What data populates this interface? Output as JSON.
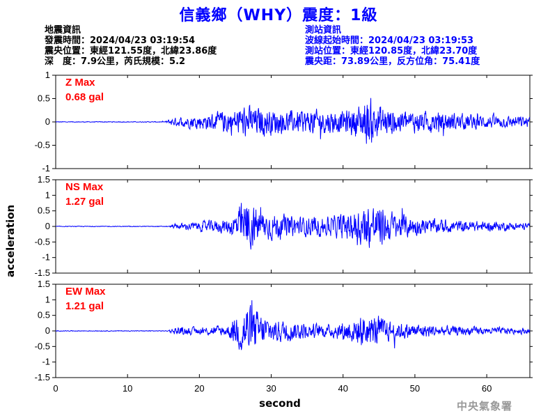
{
  "title": "信義鄉（WHY）震度：1級",
  "quake_info": {
    "header": "地震資訊",
    "time": "發震時間：2024/04/23 03:19:54",
    "location": "震央位置：東經121.55度，北緯23.86度",
    "depth_mag": "深　度：7.9公里，芮氏規模：5.2"
  },
  "station_info": {
    "header": "測站資訊",
    "wave_start": "波線起始時間：2024/04/23 03:19:53",
    "location": "測站位置：東經120.85度，北緯23.70度",
    "distance": "震央距：73.89公里，反方位角：75.41度"
  },
  "watermark": "中央氣象署",
  "colors": {
    "title": "#0000ff",
    "trace": "#0000ff",
    "max_label": "#ff0000",
    "station_text": "#0000ff"
  },
  "chart_data": [
    {
      "type": "line",
      "component": "Z",
      "max_label": "Z Max",
      "max_value": "0.68 gal",
      "ylim": [
        -1,
        1
      ],
      "yticks": [
        -1,
        -0.5,
        0,
        0.5,
        1
      ],
      "xlim": [
        0,
        66
      ],
      "envelope": {
        "x": [
          0,
          15.2,
          16,
          18,
          20,
          22,
          24,
          26,
          27,
          28,
          30,
          33,
          36,
          40,
          42,
          43.5,
          44.5,
          46,
          50,
          55,
          60,
          66
        ],
        "amp": [
          0.01,
          0.01,
          0.1,
          0.15,
          0.2,
          0.25,
          0.35,
          0.4,
          0.45,
          0.4,
          0.35,
          0.3,
          0.35,
          0.3,
          0.45,
          0.68,
          0.55,
          0.4,
          0.3,
          0.25,
          0.18,
          0.15
        ]
      }
    },
    {
      "type": "line",
      "component": "NS",
      "max_label": "NS Max",
      "max_value": "1.27 gal",
      "ylim": [
        -1.5,
        1.5
      ],
      "yticks": [
        -1.5,
        -1,
        -0.5,
        0,
        0.5,
        1,
        1.5
      ],
      "xlim": [
        0,
        66
      ],
      "envelope": {
        "x": [
          0,
          15.8,
          16.5,
          20,
          24,
          25.5,
          26.5,
          27.5,
          29,
          31,
          34,
          38,
          41,
          43,
          44.5,
          46,
          48,
          52,
          56,
          60,
          66
        ],
        "amp": [
          0.015,
          0.015,
          0.1,
          0.2,
          0.3,
          0.8,
          1.27,
          0.9,
          0.6,
          0.5,
          0.4,
          0.4,
          0.6,
          0.9,
          0.9,
          0.7,
          0.5,
          0.3,
          0.25,
          0.2,
          0.15
        ]
      }
    },
    {
      "type": "line",
      "component": "EW",
      "max_label": "EW Max",
      "max_value": "1.21 gal",
      "ylim": [
        -1.5,
        1.5
      ],
      "yticks": [
        -1.5,
        -1,
        -0.5,
        0,
        0.5,
        1,
        1.5
      ],
      "xlim": [
        0,
        66
      ],
      "envelope": {
        "x": [
          0,
          15.5,
          16.5,
          20,
          24,
          25.5,
          26.5,
          28,
          30,
          34,
          38,
          41,
          43,
          45,
          47,
          50,
          55,
          60,
          66
        ],
        "amp": [
          0.015,
          0.015,
          0.15,
          0.15,
          0.25,
          0.8,
          1.21,
          0.8,
          0.5,
          0.35,
          0.25,
          0.5,
          0.7,
          0.6,
          0.35,
          0.3,
          0.2,
          0.15,
          0.12
        ]
      }
    }
  ],
  "axes": {
    "xlabel": "second",
    "ylabel": "acceleration",
    "xticks": [
      0,
      10,
      20,
      30,
      40,
      50,
      60
    ]
  }
}
